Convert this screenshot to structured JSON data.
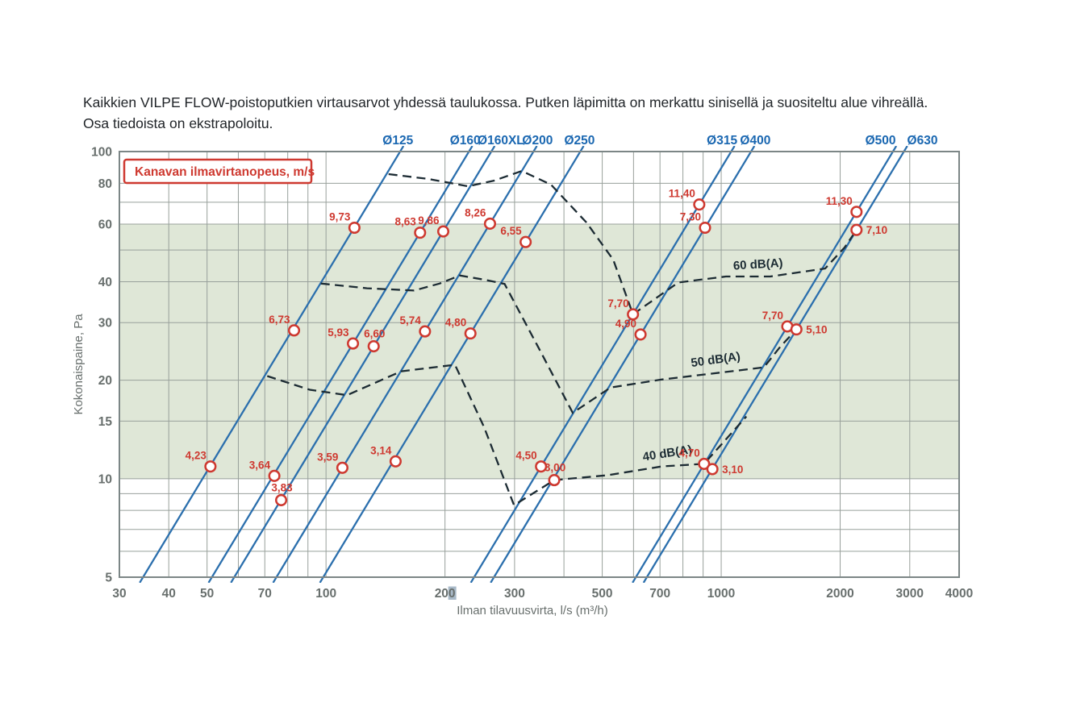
{
  "page": {
    "caption": "Kaikkien VILPE FLOW-poistoputkien virtausarvot yhdessä taulukossa. Putken läpimitta on merkattu sinisellä ja suositeltu alue vihreällä. Osa tiedoista on ekstrapoloitu."
  },
  "chart_data": {
    "type": "line",
    "title": "",
    "x_axis": {
      "label": "Ilman tilavuusvirta, l/s (m³/h)",
      "scale": "log",
      "range": [
        30,
        4000
      ],
      "gridlines": [
        30,
        40,
        50,
        60,
        70,
        80,
        90,
        100,
        200,
        300,
        400,
        500,
        600,
        700,
        800,
        900,
        1000,
        2000,
        3000,
        4000
      ],
      "ticks_labeled": [
        "30",
        "40",
        "50",
        "70",
        "100",
        "200",
        "300",
        "500",
        "700",
        "1000",
        "2000",
        "3000",
        "4000"
      ],
      "highlighted_tick": "200"
    },
    "y_axis": {
      "label": "Kokonaispaine, Pa",
      "scale": "log",
      "range": [
        5,
        100
      ],
      "gridlines": [
        5,
        6,
        7,
        8,
        9,
        10,
        15,
        20,
        30,
        40,
        50,
        60,
        70,
        80,
        100
      ],
      "ticks_labeled": [
        "100",
        "80",
        "60",
        "40",
        "30",
        "20",
        "15",
        "10",
        "5"
      ]
    },
    "recommended_band": {
      "pressure_min": 10,
      "pressure_max": 60
    },
    "legend_box": {
      "text": "Kanavan ilmavirtanopeus, m/s"
    },
    "diameter_lines": [
      {
        "label": "Ø125",
        "flow_at_100pa": 154,
        "label_flow": 152,
        "points": [
          {
            "flow": 51,
            "pressure": 10.9,
            "velocity": "4,23",
            "pos": "tl"
          },
          {
            "flow": 83,
            "pressure": 28.4,
            "velocity": "6,73",
            "pos": "tl"
          },
          {
            "flow": 118,
            "pressure": 58.5,
            "velocity": "9,73",
            "pos": "tl"
          }
        ]
      },
      {
        "label": "Ø160",
        "flow_at_100pa": 230,
        "label_flow": 225,
        "points": [
          {
            "flow": 74,
            "pressure": 10.2,
            "velocity": "3,64",
            "pos": "tl"
          },
          {
            "flow": 117,
            "pressure": 25.9,
            "velocity": "5,93",
            "pos": "tl"
          },
          {
            "flow": 173,
            "pressure": 56.5,
            "velocity": "8,63",
            "pos": "tl"
          }
        ]
      },
      {
        "label": "Ø160XL",
        "flow_at_100pa": 262,
        "label_flow": 277,
        "points": [
          {
            "flow": 77,
            "pressure": 8.6,
            "velocity": "3,83",
            "pos": "top"
          },
          {
            "flow": 132,
            "pressure": 25.4,
            "velocity": "6,60",
            "pos": "top"
          },
          {
            "flow": 198,
            "pressure": 57.0,
            "velocity": "9,86",
            "pos": "tl"
          }
        ]
      },
      {
        "label": "Ø200",
        "flow_at_100pa": 335,
        "label_flow": 343,
        "points": [
          {
            "flow": 110,
            "pressure": 10.8,
            "velocity": "3,59",
            "pos": "tl"
          },
          {
            "flow": 178,
            "pressure": 28.2,
            "velocity": "5,74",
            "pos": "tl"
          },
          {
            "flow": 260,
            "pressure": 60.2,
            "velocity": "8,26",
            "pos": "tl"
          }
        ]
      },
      {
        "label": "Ø250",
        "flow_at_100pa": 440,
        "label_flow": 438,
        "points": [
          {
            "flow": 150,
            "pressure": 11.3,
            "velocity": "3,14",
            "pos": "tl"
          },
          {
            "flow": 232,
            "pressure": 27.8,
            "velocity": "4,80",
            "pos": "tl"
          },
          {
            "flow": 320,
            "pressure": 52.9,
            "velocity": "6,55",
            "pos": "tl"
          }
        ]
      },
      {
        "label": "Ø315",
        "flow_at_100pa": 1060,
        "label_flow": 1005,
        "points": [
          {
            "flow": 350,
            "pressure": 10.9,
            "velocity": "4,50",
            "pos": "tl"
          },
          {
            "flow": 598,
            "pressure": 31.8,
            "velocity": "7,70",
            "pos": "tl"
          },
          {
            "flow": 880,
            "pressure": 68.9,
            "velocity": "11,40",
            "pos": "tl"
          }
        ]
      },
      {
        "label": "Ø400",
        "flow_at_100pa": 1190,
        "label_flow": 1220,
        "points": [
          {
            "flow": 378,
            "pressure": 9.9,
            "velocity": "3,00",
            "pos": "top"
          },
          {
            "flow": 625,
            "pressure": 27.6,
            "velocity": "4,90",
            "pos": "tl"
          },
          {
            "flow": 910,
            "pressure": 58.5,
            "velocity": "7,30",
            "pos": "tl"
          }
        ]
      },
      {
        "label": "Ø500",
        "flow_at_100pa": 2720,
        "label_flow": 2530,
        "points": [
          {
            "flow": 905,
            "pressure": 11.1,
            "velocity": "4,70",
            "pos": "tl"
          },
          {
            "flow": 1470,
            "pressure": 29.2,
            "velocity": "7,70",
            "pos": "tl"
          },
          {
            "flow": 2200,
            "pressure": 65.4,
            "velocity": "11,30",
            "pos": "tl"
          }
        ]
      },
      {
        "label": "Ø630",
        "flow_at_100pa": 2900,
        "label_flow": 3230,
        "points": [
          {
            "flow": 950,
            "pressure": 10.7,
            "velocity": "3,10",
            "pos": "r"
          },
          {
            "flow": 1550,
            "pressure": 28.6,
            "velocity": "5,10",
            "pos": "r"
          },
          {
            "flow": 2200,
            "pressure": 57.6,
            "velocity": "7,10",
            "pos": "r"
          }
        ]
      }
    ],
    "db_curves": [
      {
        "label": "60 dB(A)",
        "label_at": {
          "flow": 1241,
          "pressure": 44
        },
        "label_rotation": -3.5,
        "points": [
          [
            144,
            85.3
          ],
          [
            181,
            82.5
          ],
          [
            229,
            78.3
          ],
          [
            266,
            81.5
          ],
          [
            313,
            87.2
          ],
          [
            371,
            79.2
          ],
          [
            456,
            60.7
          ],
          [
            533,
            46.7
          ],
          [
            598,
            31.8
          ],
          [
            779,
            39.8
          ],
          [
            1028,
            41.5
          ],
          [
            1331,
            41.5
          ],
          [
            1832,
            43.9
          ],
          [
            2052,
            50.9
          ],
          [
            2200,
            57.6
          ]
        ]
      },
      {
        "label": "50 dB(A)",
        "label_at": {
          "flow": 971,
          "pressure": 22.5
        },
        "label_rotation": -8,
        "points": [
          [
            97,
            39.5
          ],
          [
            127,
            38.2
          ],
          [
            167,
            37.6
          ],
          [
            194,
            39.5
          ],
          [
            218,
            41.8
          ],
          [
            251,
            40.6
          ],
          [
            283,
            39.4
          ],
          [
            344,
            25.3
          ],
          [
            421,
            15.9
          ],
          [
            525,
            19.0
          ],
          [
            707,
            20.1
          ],
          [
            1028,
            21.2
          ],
          [
            1282,
            21.9
          ],
          [
            1410,
            25.3
          ],
          [
            1550,
            28.6
          ]
        ]
      },
      {
        "label": "40 dB(A)",
        "label_at": {
          "flow": 733,
          "pressure": 11.65
        },
        "label_rotation": -9,
        "points": [
          [
            71,
            20.6
          ],
          [
            91,
            18.7
          ],
          [
            113,
            18.0
          ],
          [
            155,
            21.3
          ],
          [
            212,
            22.3
          ],
          [
            251,
            14.4
          ],
          [
            299,
            8.3
          ],
          [
            378,
            9.9
          ],
          [
            516,
            10.25
          ],
          [
            707,
            10.9
          ],
          [
            905,
            11.1
          ],
          [
            1158,
            15.5
          ]
        ]
      }
    ],
    "colors": {
      "blue_line": "#2b6fad",
      "blue_label": "#1a67b1",
      "red": "#ce3930",
      "green_band": "#dfe7d7",
      "grid": "#98a09b",
      "border": "#7c8686",
      "dashed": "#1c2b33",
      "axis_text": "#686f6d",
      "tick_highlight": "#a8b9c8"
    }
  }
}
